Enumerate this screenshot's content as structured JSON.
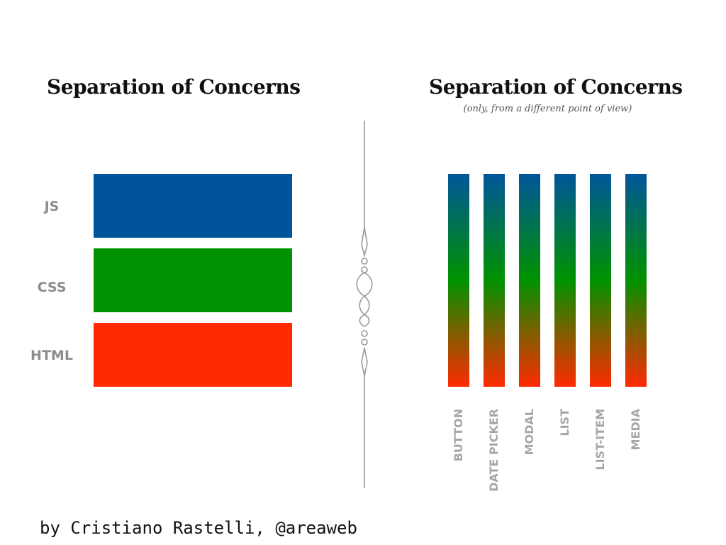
{
  "left_panel": {
    "title": "Separation of Concerns",
    "layers": [
      {
        "label": "JS",
        "color": "#00559a"
      },
      {
        "label": "CSS",
        "color": "#009200"
      },
      {
        "label": "HTML",
        "color": "#ff2a00"
      }
    ]
  },
  "right_panel": {
    "title": "Separation of Concerns",
    "subtitle": "(only, from a different point of view)",
    "gradient_colors": [
      "#00559a",
      "#009200",
      "#ff2a00"
    ],
    "components": [
      {
        "label": "BUTTON"
      },
      {
        "label": "DATE PICKER"
      },
      {
        "label": "MODAL"
      },
      {
        "label": "LIST"
      },
      {
        "label": "LIST-ITEM"
      },
      {
        "label": "MEDIA"
      }
    ]
  },
  "divider": {
    "icon": "ornamental-flourish-icon",
    "color": "#999999"
  },
  "footer": {
    "credit": "by Cristiano Rastelli, @areaweb"
  }
}
